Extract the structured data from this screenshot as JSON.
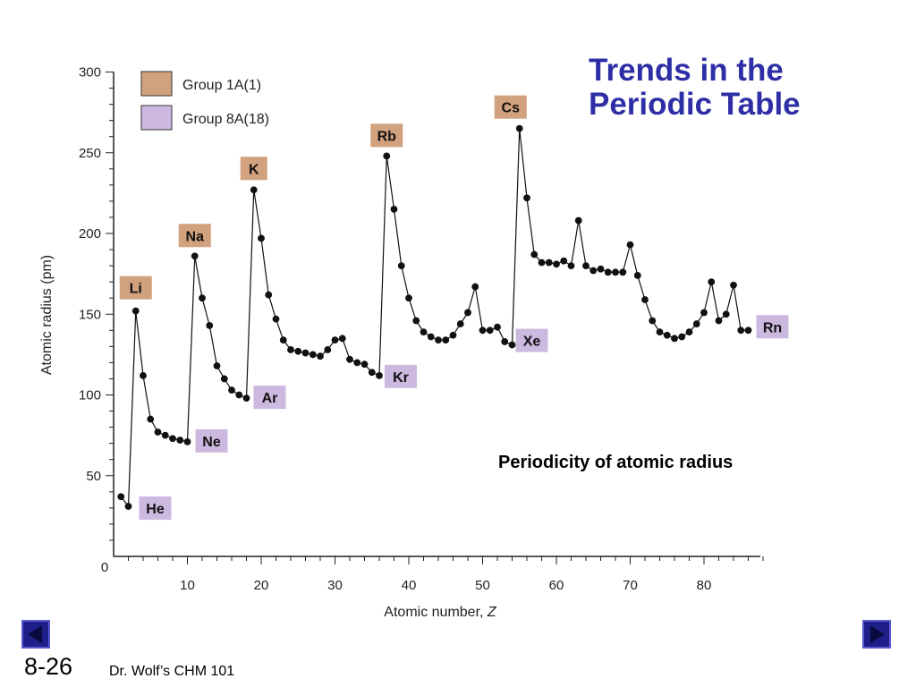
{
  "slide": {
    "title_line1": "Trends in the",
    "title_line2": "Periodic Table",
    "caption": "Periodicity of atomic radius",
    "page_number": "8-26",
    "author": "Dr. Wolf’s CHM 101"
  },
  "colors": {
    "group1": "#d2a17e",
    "group8": "#cdb8e0",
    "title": "#2e2ea6",
    "nav": "#1f1f8a"
  },
  "icons": {
    "prev": "triangle-left-icon",
    "next": "triangle-right-icon"
  },
  "chart_data": {
    "type": "line",
    "xlabel": "Atomic number, Z",
    "ylabel": "Atomic radius (pm)",
    "xlim": [
      0,
      88
    ],
    "ylim": [
      0,
      300
    ],
    "xticks": [
      0,
      10,
      20,
      30,
      40,
      50,
      60,
      70,
      80
    ],
    "yticks": [
      50,
      100,
      150,
      200,
      250,
      300
    ],
    "legend": {
      "position": "top-left",
      "entries": [
        {
          "label": "Group 1A(1)",
          "color": "#d2a17e"
        },
        {
          "label": "Group 8A(18)",
          "color": "#cdb8e0"
        }
      ]
    },
    "x": [
      1,
      2,
      3,
      4,
      5,
      6,
      7,
      8,
      9,
      10,
      11,
      12,
      13,
      14,
      15,
      16,
      17,
      18,
      19,
      20,
      21,
      22,
      23,
      24,
      25,
      26,
      27,
      28,
      29,
      30,
      31,
      32,
      33,
      34,
      35,
      36,
      37,
      38,
      39,
      40,
      41,
      42,
      43,
      44,
      45,
      46,
      47,
      48,
      49,
      50,
      51,
      52,
      53,
      54,
      55,
      56,
      57,
      58,
      59,
      60,
      61,
      62,
      63,
      64,
      65,
      66,
      67,
      68,
      69,
      70,
      71,
      72,
      73,
      74,
      75,
      76,
      77,
      78,
      79,
      80,
      81,
      82,
      83,
      84,
      85,
      86
    ],
    "y": [
      37,
      31,
      152,
      112,
      85,
      77,
      75,
      73,
      72,
      71,
      186,
      160,
      143,
      118,
      110,
      103,
      100,
      98,
      227,
      197,
      162,
      147,
      134,
      128,
      127,
      126,
      125,
      124,
      128,
      134,
      135,
      122,
      120,
      119,
      114,
      112,
      248,
      215,
      180,
      160,
      146,
      139,
      136,
      134,
      134,
      137,
      144,
      151,
      167,
      140,
      140,
      142,
      133,
      131,
      265,
      222,
      187,
      182,
      182,
      181,
      183,
      180,
      208,
      180,
      177,
      178,
      176,
      176,
      176,
      193,
      174,
      159,
      146,
      139,
      137,
      135,
      136,
      139,
      144,
      151,
      170,
      146,
      150,
      168,
      140,
      140
    ],
    "annotations": [
      {
        "label": "Li",
        "group": "1A",
        "x": 3,
        "y": 152
      },
      {
        "label": "Na",
        "group": "1A",
        "x": 11,
        "y": 186
      },
      {
        "label": "K",
        "group": "1A",
        "x": 19,
        "y": 227
      },
      {
        "label": "Rb",
        "group": "1A",
        "x": 37,
        "y": 248
      },
      {
        "label": "Cs",
        "group": "1A",
        "x": 55,
        "y": 265
      },
      {
        "label": "He",
        "group": "8A",
        "x": 2,
        "y": 31
      },
      {
        "label": "Ne",
        "group": "8A",
        "x": 10,
        "y": 71
      },
      {
        "label": "Ar",
        "group": "8A",
        "x": 18,
        "y": 98
      },
      {
        "label": "Kr",
        "group": "8A",
        "x": 36,
        "y": 112
      },
      {
        "label": "Xe",
        "group": "8A",
        "x": 54,
        "y": 131
      },
      {
        "label": "Rn",
        "group": "8A",
        "x": 86,
        "y": 140
      }
    ]
  }
}
